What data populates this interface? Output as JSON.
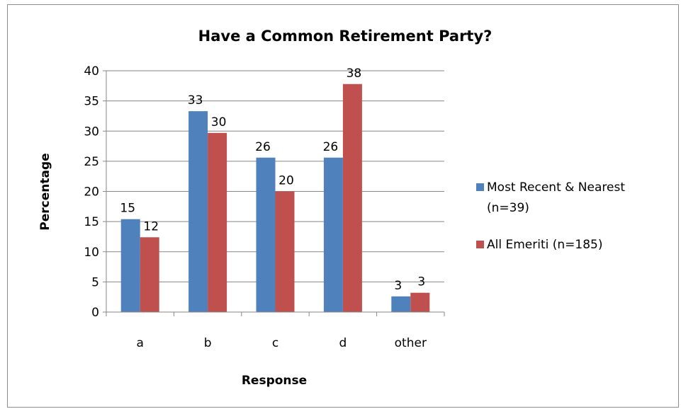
{
  "chart_data": {
    "type": "bar",
    "title": "Have a Common Retirement Party?",
    "xlabel": "Response",
    "ylabel": "Percentage",
    "categories": [
      "a",
      "b",
      "c",
      "d",
      "other"
    ],
    "ylim": [
      0,
      40
    ],
    "yticks": [
      0,
      5,
      10,
      15,
      20,
      25,
      30,
      35,
      40
    ],
    "grid": true,
    "legend_position": "right",
    "series": [
      {
        "name": "Most Recent & Nearest (n=39)",
        "legend_lines": [
          "Most Recent & Nearest",
          "(n=39)"
        ],
        "color": "#4F81BD",
        "values": [
          15.4,
          33.3,
          25.6,
          25.6,
          2.6
        ],
        "labels": [
          "15",
          "33",
          "26",
          "26",
          "3"
        ]
      },
      {
        "name": "All Emeriti (n=185)",
        "legend_lines": [
          "All Emeriti (n=185)"
        ],
        "color": "#C0504D",
        "values": [
          12.4,
          29.7,
          20.0,
          37.8,
          3.2
        ],
        "labels": [
          "12",
          "30",
          "20",
          "38",
          "3"
        ]
      }
    ]
  }
}
